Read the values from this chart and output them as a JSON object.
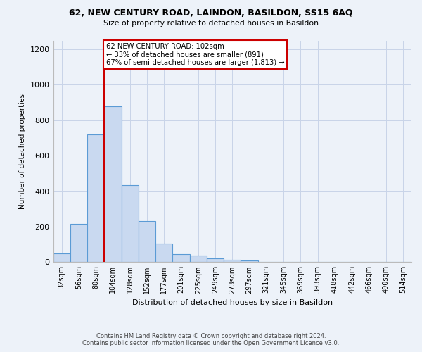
{
  "title1": "62, NEW CENTURY ROAD, LAINDON, BASILDON, SS15 6AQ",
  "title2": "Size of property relative to detached houses in Basildon",
  "xlabel": "Distribution of detached houses by size in Basildon",
  "ylabel": "Number of detached properties",
  "footnote1": "Contains HM Land Registry data © Crown copyright and database right 2024.",
  "footnote2": "Contains public sector information licensed under the Open Government Licence v3.0.",
  "bin_labels": [
    "32sqm",
    "56sqm",
    "80sqm",
    "104sqm",
    "128sqm",
    "152sqm",
    "177sqm",
    "201sqm",
    "225sqm",
    "249sqm",
    "273sqm",
    "297sqm",
    "321sqm",
    "345sqm",
    "369sqm",
    "393sqm",
    "418sqm",
    "442sqm",
    "466sqm",
    "490sqm",
    "514sqm"
  ],
  "bar_values": [
    50,
    215,
    720,
    880,
    435,
    230,
    105,
    45,
    38,
    22,
    15,
    8,
    0,
    0,
    0,
    0,
    0,
    0,
    0,
    0,
    0
  ],
  "bar_color": "#c9d9f0",
  "bar_edge_color": "#5b9bd5",
  "grid_color": "#c8d4e8",
  "background_color": "#edf2f9",
  "vline_color": "#cc0000",
  "annotation_text": "62 NEW CENTURY ROAD: 102sqm\n← 33% of detached houses are smaller (891)\n67% of semi-detached houses are larger (1,813) →",
  "annotation_box_color": "#ffffff",
  "annotation_box_edge": "#cc0000",
  "ylim": [
    0,
    1250
  ],
  "yticks": [
    0,
    200,
    400,
    600,
    800,
    1000,
    1200
  ],
  "vline_pos": 2.5
}
